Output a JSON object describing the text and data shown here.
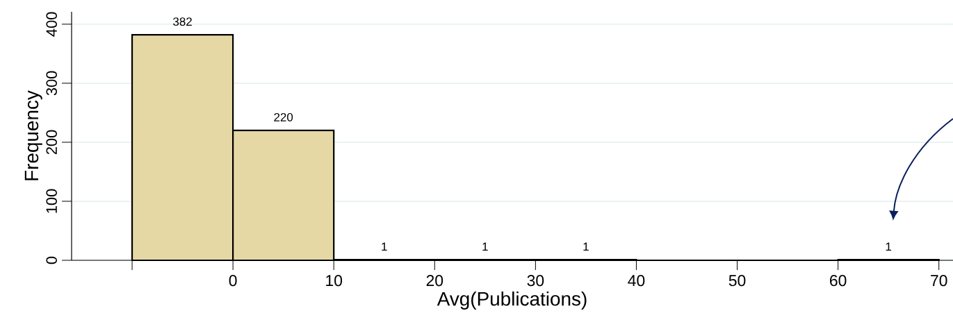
{
  "chart_data": {
    "type": "histogram",
    "xlabel": "Avg(Publications)",
    "ylabel": "Frequency",
    "bins": [
      -10,
      0,
      10,
      20,
      30,
      40,
      50,
      60,
      70
    ],
    "values": [
      382,
      220,
      1,
      1,
      1,
      0,
      0,
      1
    ],
    "value_labels": [
      "382",
      "220",
      "1",
      "1",
      "1",
      null,
      null,
      "1"
    ],
    "color": "#e5d8a5",
    "xlim": [
      -16,
      71.4
    ],
    "ylim": [
      0,
      421
    ],
    "xticks": [
      {
        "value": -10,
        "label": null
      },
      0,
      10,
      20,
      30,
      40,
      50,
      60,
      70
    ],
    "yticks": [
      0,
      100,
      200,
      300,
      400
    ],
    "grid": "y"
  }
}
